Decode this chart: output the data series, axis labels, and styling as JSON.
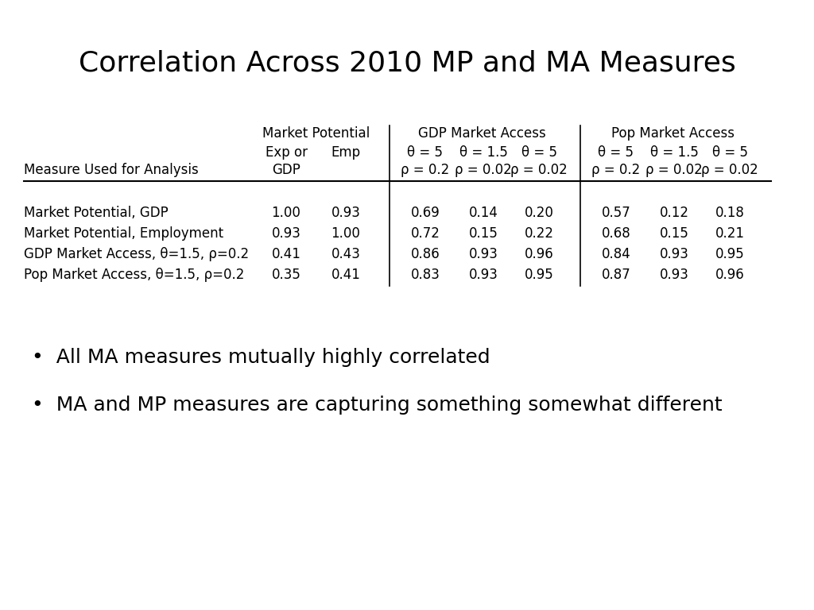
{
  "title": "Correlation Across 2010 MP and MA Measures",
  "title_fontsize": 26,
  "background_color": "#ffffff",
  "bullet_points": [
    "All MA measures mutually highly correlated",
    "MA and MP measures are capturing something somewhat different"
  ],
  "bullet_fontsize": 18,
  "rows": [
    [
      "Market Potential, GDP",
      "1.00",
      "0.93",
      "0.69",
      "0.14",
      "0.20",
      "0.57",
      "0.12",
      "0.18"
    ],
    [
      "Market Potential, Employment",
      "0.93",
      "1.00",
      "0.72",
      "0.15",
      "0.22",
      "0.68",
      "0.15",
      "0.21"
    ],
    [
      "GDP Market Access, θ=1.5, ρ=0.2",
      "0.41",
      "0.43",
      "0.86",
      "0.93",
      "0.96",
      "0.84",
      "0.93",
      "0.95"
    ],
    [
      "Pop Market Access, θ=1.5, ρ=0.2",
      "0.35",
      "0.41",
      "0.83",
      "0.93",
      "0.95",
      "0.87",
      "0.93",
      "0.96"
    ]
  ],
  "header_fontsize": 12,
  "data_fontsize": 12
}
